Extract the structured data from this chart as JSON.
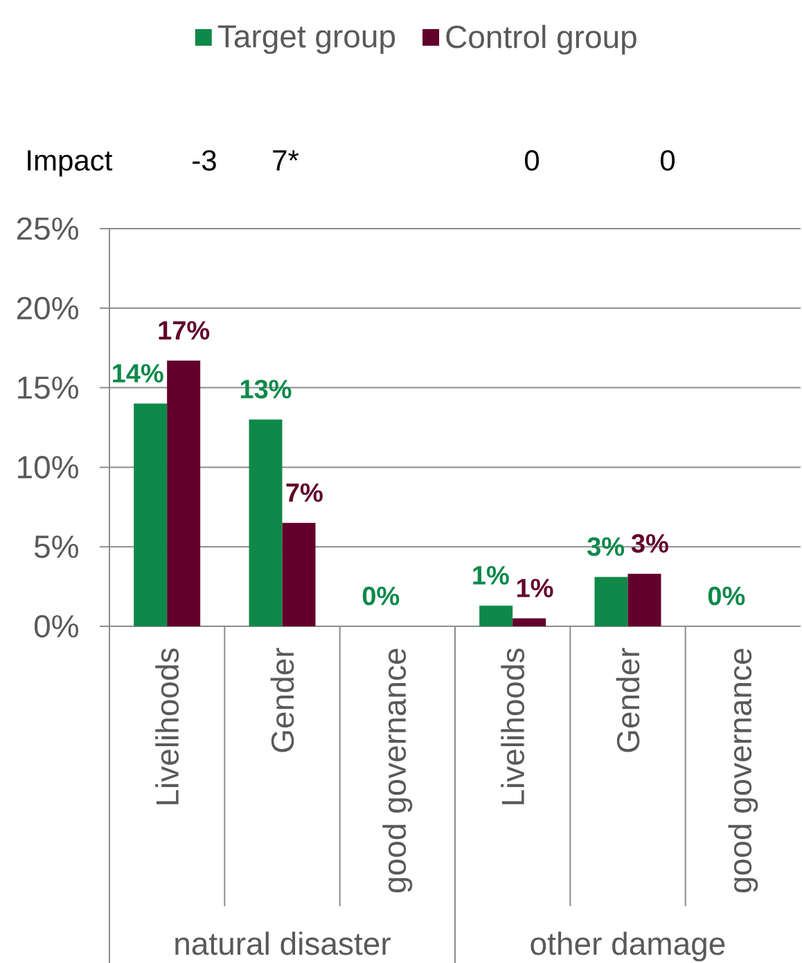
{
  "chart_data": {
    "type": "bar",
    "categories": [
      "Livelihoods",
      "Gender",
      "good governance",
      "Livelihoods",
      "Gender",
      "good governance"
    ],
    "series": [
      {
        "name": "Target group",
        "color": "#0E894A",
        "values": [
          14,
          13,
          0,
          1.3,
          3.1,
          0
        ],
        "value_labels": [
          "14%",
          "13%",
          "0%",
          "1%",
          "3%",
          "0%"
        ]
      },
      {
        "name": "Control group",
        "color": "#62002B",
        "values": [
          16.7,
          6.5,
          null,
          0.5,
          3.3,
          null
        ],
        "value_labels": [
          "17%",
          "7%",
          null,
          "1%",
          "3%",
          null
        ]
      }
    ],
    "ylim": [
      0,
      25
    ],
    "yticks": [
      {
        "value": 0,
        "label": "0%"
      },
      {
        "value": 5,
        "label": "5%"
      },
      {
        "value": 10,
        "label": "10%"
      },
      {
        "value": 15,
        "label": "15%"
      },
      {
        "value": 20,
        "label": "20%"
      },
      {
        "value": 25,
        "label": "25%"
      }
    ],
    "grid": "y",
    "legend": "top",
    "annotations": [
      "Impact",
      "-3",
      "7*",
      "0",
      "0",
      "natural disaster",
      "other damage"
    ]
  }
}
